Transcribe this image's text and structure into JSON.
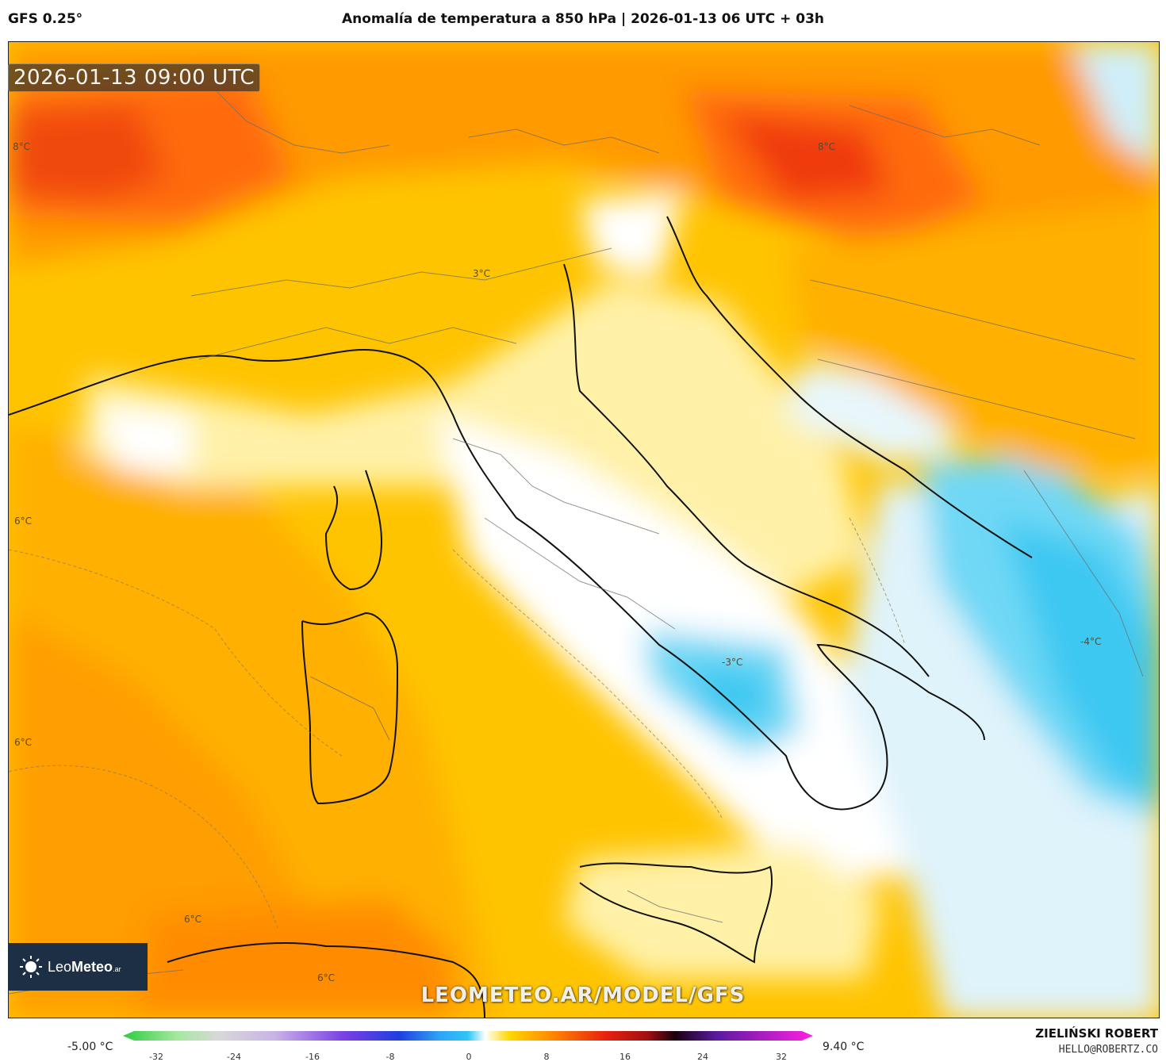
{
  "header": {
    "model": "GFS 0.25°",
    "title": "Anomalía de temperatura a 850 hPa | 2026-01-13 06 UTC + 03h"
  },
  "map": {
    "valid_time": "2026-01-13 09:00 UTC",
    "watermark_url": "LEOMETEO.AR/MODEL/GFS",
    "contour_labels": [
      "8°C",
      "6°C",
      "6°C",
      "6°C",
      "6°C",
      "3°C",
      "8°C",
      "-3°C",
      "-4°C"
    ],
    "logo": {
      "brand_light": "Leo",
      "brand_bold": "Meteo",
      "suffix": ".ar"
    }
  },
  "legend": {
    "min_label": "-5.00 °C",
    "max_label": "9.40 °C",
    "ticks": [
      "-32",
      "-24",
      "-16",
      "-8",
      "0",
      "8",
      "16",
      "24",
      "32"
    ],
    "colors": {
      "green": "#2ecc40",
      "lavender": "#c9b3e6",
      "violet": "#7b3fe4",
      "blue": "#1f3fe0",
      "cyan": "#2fc5f5",
      "white": "#ffffff",
      "yellow": "#ffd600",
      "orange": "#ff8a00",
      "red": "#e82010",
      "dark": "#1a0010",
      "magenta": "#ff20e0"
    }
  },
  "credit": {
    "author": "ZIELIŃSKI ROBERT",
    "email": "HELLO@ROBERTZ.CO"
  }
}
